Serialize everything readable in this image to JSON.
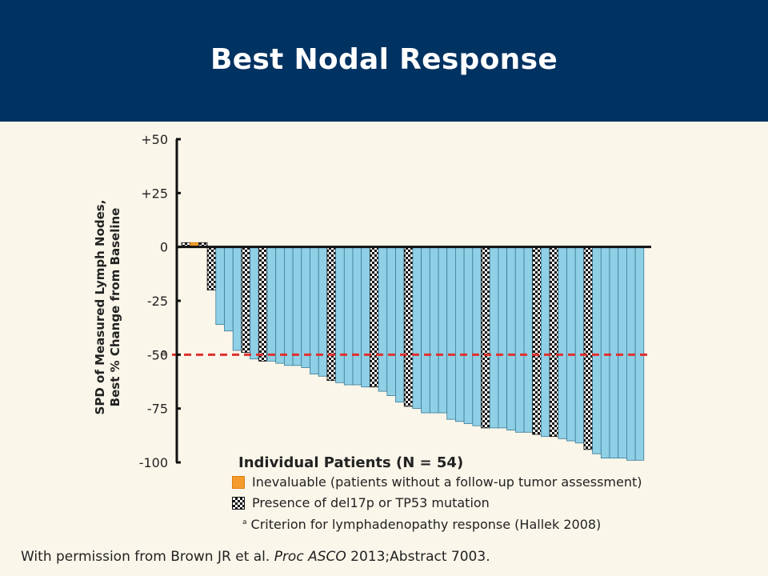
{
  "title": "Best Nodal Response",
  "colors": {
    "header": "#003262",
    "background": "#fbf6ea",
    "bar_fill": "#8fd0e6",
    "bar_stroke": "#3c7a96",
    "threshold_line": "#e0302c",
    "inevaluable": "#f39b2c"
  },
  "chart_data": {
    "type": "bar",
    "ylabel_line1": "SPD of Measured Lymph Nodes,",
    "ylabel_line2": "Best % Change from Baseline",
    "yticks": [
      "+50",
      "+25",
      "0",
      "-25",
      "-50",
      "-75",
      "-100"
    ],
    "ytick_values": [
      50,
      25,
      0,
      -25,
      -50,
      -75,
      -100
    ],
    "ylim": [
      -100,
      50
    ],
    "threshold": {
      "value": -50,
      "marker": "a"
    },
    "values": [
      2,
      2,
      2,
      -20,
      -36,
      -39,
      -48,
      -49,
      -52,
      -53,
      -53,
      -54,
      -55,
      -55,
      -56,
      -59,
      -60,
      -62,
      -63,
      -64,
      -64,
      -65,
      -65,
      -67,
      -69,
      -72,
      -74,
      -75,
      -77,
      -77,
      -77,
      -80,
      -81,
      -82,
      -83,
      -84,
      -84,
      -84,
      -85,
      -86,
      -86,
      -87,
      -88,
      -88,
      -89,
      -90,
      -91,
      -94,
      -96,
      -98,
      -98,
      -98,
      -99,
      -99
    ],
    "inevaluable_index": [
      1
    ],
    "del17p_index": [
      0,
      2,
      3,
      7,
      9,
      17,
      22,
      26,
      35,
      41,
      43,
      47
    ]
  },
  "legend": {
    "patients_title": "Individual Patients (N = 54)",
    "inevaluable": "Inevaluable (patients without a follow-up tumor assessment)",
    "del17p": "Presence of del17p or TP53 mutation",
    "footnote_marker": "a",
    "footnote": "Criterion for lymphadenopathy response (Hallek 2008)"
  },
  "source": {
    "prefix": "With permission from Brown JR et al. ",
    "journal": "Proc ASCO",
    "suffix": " 2013;Abstract 7003."
  }
}
